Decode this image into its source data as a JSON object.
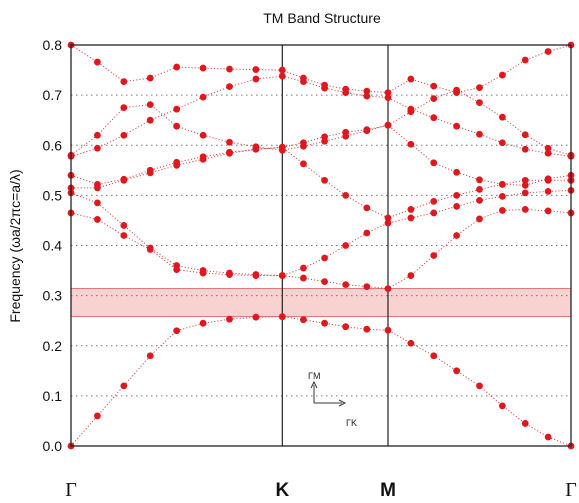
{
  "chart_data": {
    "type": "scatter",
    "title": "TM Band Structure",
    "ylabel": "Frequency (ωa/2πc=a/λ)",
    "xlabel": "",
    "ylim": [
      0,
      0.8
    ],
    "yticks": [
      "0.0",
      "0.1",
      "0.2",
      "0.3",
      "0.4",
      "0.5",
      "0.6",
      "0.7",
      "0.8"
    ],
    "xlim": [
      0,
      2.7321
    ],
    "high_symmetry_points": [
      {
        "label": "Γ",
        "x": 0
      },
      {
        "label": "K",
        "x": 1.1547
      },
      {
        "label": "M",
        "x": 1.7321
      },
      {
        "label": "Γ",
        "x": 2.7321
      }
    ],
    "grid": "horizontal dotted",
    "band_gap": {
      "min": 0.258,
      "max": 0.314,
      "color": "#f3b3b3"
    },
    "marker_color": "#e0181e",
    "line_color": "#d64a4a",
    "inset": {
      "y_label": "ΓM",
      "x_label": "ΓK"
    },
    "series": [
      {
        "x": [
          0,
          0.1443,
          0.2887,
          0.433,
          0.5774,
          0.7217,
          0.866,
          1.0104,
          1.1547,
          1.2701,
          1.3856,
          1.501,
          1.6165,
          1.7321,
          1.8571,
          1.9821,
          2.1071,
          2.2321,
          2.3571,
          2.4821,
          2.6071,
          2.7321
        ],
        "y": [
          0.0,
          0.06,
          0.12,
          0.18,
          0.23,
          0.245,
          0.253,
          0.257,
          0.258,
          0.252,
          0.245,
          0.238,
          0.233,
          0.231,
          0.205,
          0.18,
          0.15,
          0.12,
          0.08,
          0.045,
          0.018,
          0.0
        ]
      },
      {
        "x": [
          0,
          0.1443,
          0.2887,
          0.433,
          0.5774,
          0.7217,
          0.866,
          1.0104,
          1.1547,
          1.2701,
          1.3856,
          1.501,
          1.6165,
          1.7321,
          1.8571,
          1.9821,
          2.1071,
          2.2321,
          2.3571,
          2.4821,
          2.6071,
          2.7321
        ],
        "y": [
          0.465,
          0.452,
          0.42,
          0.392,
          0.352,
          0.345,
          0.342,
          0.34,
          0.34,
          0.335,
          0.328,
          0.322,
          0.318,
          0.314,
          0.34,
          0.38,
          0.42,
          0.453,
          0.47,
          0.472,
          0.469,
          0.465
        ]
      },
      {
        "x": [
          0,
          0.1443,
          0.2887,
          0.433,
          0.5774,
          0.7217,
          0.866,
          1.0104,
          1.1547,
          1.2701,
          1.3856,
          1.501,
          1.6165,
          1.7321,
          1.8571,
          1.9821,
          2.1071,
          2.2321,
          2.3571,
          2.4821,
          2.6071,
          2.7321
        ],
        "y": [
          0.505,
          0.485,
          0.44,
          0.395,
          0.36,
          0.35,
          0.345,
          0.342,
          0.34,
          0.355,
          0.375,
          0.4,
          0.425,
          0.445,
          0.455,
          0.465,
          0.478,
          0.49,
          0.498,
          0.505,
          0.508,
          0.51
        ]
      },
      {
        "x": [
          0,
          0.1443,
          0.2887,
          0.433,
          0.5774,
          0.7217,
          0.866,
          1.0104,
          1.1547,
          1.2701,
          1.3856,
          1.501,
          1.6165,
          1.7321,
          1.8571,
          1.9821,
          2.1071,
          2.2321,
          2.3571,
          2.4821,
          2.6071,
          2.7321
        ],
        "y": [
          0.515,
          0.515,
          0.53,
          0.545,
          0.56,
          0.572,
          0.584,
          0.592,
          0.596,
          0.563,
          0.53,
          0.5,
          0.475,
          0.455,
          0.472,
          0.488,
          0.5,
          0.512,
          0.522,
          0.53,
          0.53,
          0.53
        ]
      },
      {
        "x": [
          0,
          0.1443,
          0.2887,
          0.433,
          0.5774,
          0.7217,
          0.866,
          1.0104,
          1.1547,
          1.2701,
          1.3856,
          1.501,
          1.6165,
          1.7321,
          1.8571,
          1.9821,
          2.1071,
          2.2321,
          2.3571,
          2.4821,
          2.6071,
          2.7321
        ],
        "y": [
          0.54,
          0.522,
          0.532,
          0.55,
          0.566,
          0.577,
          0.586,
          0.592,
          0.596,
          0.605,
          0.617,
          0.626,
          0.631,
          0.64,
          0.602,
          0.565,
          0.546,
          0.531,
          0.522,
          0.52,
          0.533,
          0.54
        ]
      },
      {
        "x": [
          0,
          0.1443,
          0.2887,
          0.433,
          0.5774,
          0.7217,
          0.866,
          1.0104,
          1.1547,
          1.2701,
          1.3856,
          1.501,
          1.6165,
          1.7321,
          1.8571,
          1.9821,
          2.1071,
          2.2321,
          2.3571,
          2.4821,
          2.6071,
          2.7321
        ],
        "y": [
          0.578,
          0.594,
          0.62,
          0.65,
          0.672,
          0.696,
          0.717,
          0.732,
          0.738,
          0.727,
          0.714,
          0.705,
          0.698,
          0.695,
          0.672,
          0.655,
          0.638,
          0.622,
          0.605,
          0.592,
          0.584,
          0.578
        ]
      },
      {
        "x": [
          0,
          0.1443,
          0.2887,
          0.433,
          0.5774,
          0.7217,
          0.866,
          1.0104,
          1.1547,
          1.2701,
          1.3856,
          1.501,
          1.6165,
          1.7321,
          1.8571,
          1.9821,
          2.1071,
          2.2321,
          2.3571,
          2.4821,
          2.6071,
          2.7321
        ],
        "y": [
          0.58,
          0.62,
          0.675,
          0.681,
          0.638,
          0.62,
          0.606,
          0.597,
          0.59,
          0.598,
          0.608,
          0.618,
          0.629,
          0.64,
          0.667,
          0.693,
          0.71,
          0.685,
          0.656,
          0.621,
          0.594,
          0.58
        ]
      },
      {
        "x": [
          0,
          0.1443,
          0.2887,
          0.433,
          0.5774,
          0.7217,
          0.866,
          1.0104,
          1.1547,
          1.2701,
          1.3856,
          1.501,
          1.6165,
          1.7321,
          1.8571,
          1.9821,
          2.1071,
          2.2321,
          2.3571,
          2.4821,
          2.6071,
          2.7321
        ],
        "y": [
          0.8,
          0.766,
          0.727,
          0.734,
          0.756,
          0.754,
          0.752,
          0.751,
          0.75,
          0.734,
          0.72,
          0.712,
          0.708,
          0.705,
          0.732,
          0.718,
          0.705,
          0.715,
          0.74,
          0.77,
          0.787,
          0.8
        ]
      }
    ]
  }
}
